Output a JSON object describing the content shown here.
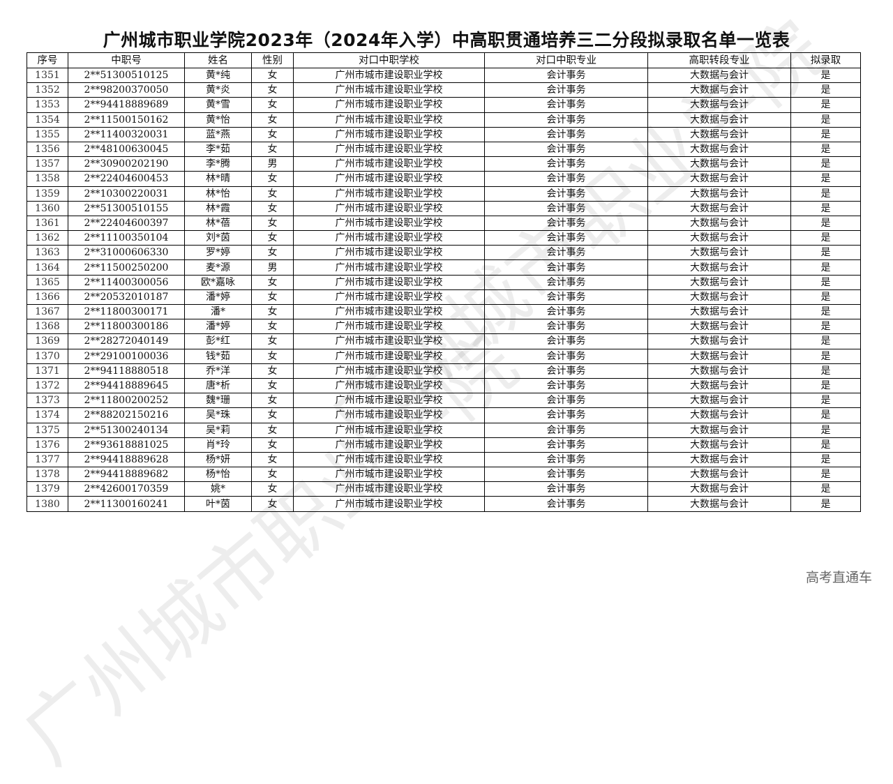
{
  "title": "广州城市职业学院2023年（2024年入学）中高职贯通培养三二分段拟录取名单一览表",
  "columns": [
    "序号",
    "中职号",
    "姓名",
    "性别",
    "对口中职学校",
    "对口中职专业",
    "高职转段专业",
    "拟录取"
  ],
  "default_school": "广州市城市建设职业学校",
  "default_major": "会计事务",
  "default_target": "大数据与会计",
  "default_admit": "是",
  "rows": [
    [
      "1351",
      "2**51300510125",
      "黄*纯",
      "女"
    ],
    [
      "1352",
      "2**98200370050",
      "黄*炎",
      "女"
    ],
    [
      "1353",
      "2**94418889689",
      "黄*雪",
      "女"
    ],
    [
      "1354",
      "2**11500150162",
      "黄*怡",
      "女"
    ],
    [
      "1355",
      "2**11400320031",
      "蓝*燕",
      "女"
    ],
    [
      "1356",
      "2**48100630045",
      "李*茹",
      "女"
    ],
    [
      "1357",
      "2**30900202190",
      "李*腾",
      "男"
    ],
    [
      "1358",
      "2**22404600453",
      "林*晴",
      "女"
    ],
    [
      "1359",
      "2**10300220031",
      "林*怡",
      "女"
    ],
    [
      "1360",
      "2**51300510155",
      "林*霞",
      "女"
    ],
    [
      "1361",
      "2**22404600397",
      "林*蓓",
      "女"
    ],
    [
      "1362",
      "2**11100350104",
      "刘*茵",
      "女"
    ],
    [
      "1363",
      "2**31000606330",
      "罗*婷",
      "女"
    ],
    [
      "1364",
      "2**11500250200",
      "麦*源",
      "男"
    ],
    [
      "1365",
      "2**11400300056",
      "欧*嘉咏",
      "女"
    ],
    [
      "1366",
      "2**20532010187",
      "潘*婷",
      "女"
    ],
    [
      "1367",
      "2**11800300171",
      "潘*",
      "女"
    ],
    [
      "1368",
      "2**11800300186",
      "潘*婷",
      "女"
    ],
    [
      "1369",
      "2**28272040149",
      "彭*红",
      "女"
    ],
    [
      "1370",
      "2**29100100036",
      "钱*茹",
      "女"
    ],
    [
      "1371",
      "2**94118880518",
      "乔*洋",
      "女"
    ],
    [
      "1372",
      "2**94418889645",
      "唐*析",
      "女"
    ],
    [
      "1373",
      "2**11800200252",
      "魏*珊",
      "女"
    ],
    [
      "1374",
      "2**88202150216",
      "吴*珠",
      "女"
    ],
    [
      "1375",
      "2**51300240134",
      "吴*莉",
      "女"
    ],
    [
      "1376",
      "2**93618881025",
      "肖*玲",
      "女"
    ],
    [
      "1377",
      "2**94418889628",
      "杨*妍",
      "女"
    ],
    [
      "1378",
      "2**94418889682",
      "杨*怡",
      "女"
    ],
    [
      "1379",
      "2**42600170359",
      "姚*",
      "女"
    ],
    [
      "1380",
      "2**11300160241",
      "叶*茵",
      "女"
    ]
  ],
  "watermark": "广州城市职业学院",
  "footer": "高考直通车"
}
